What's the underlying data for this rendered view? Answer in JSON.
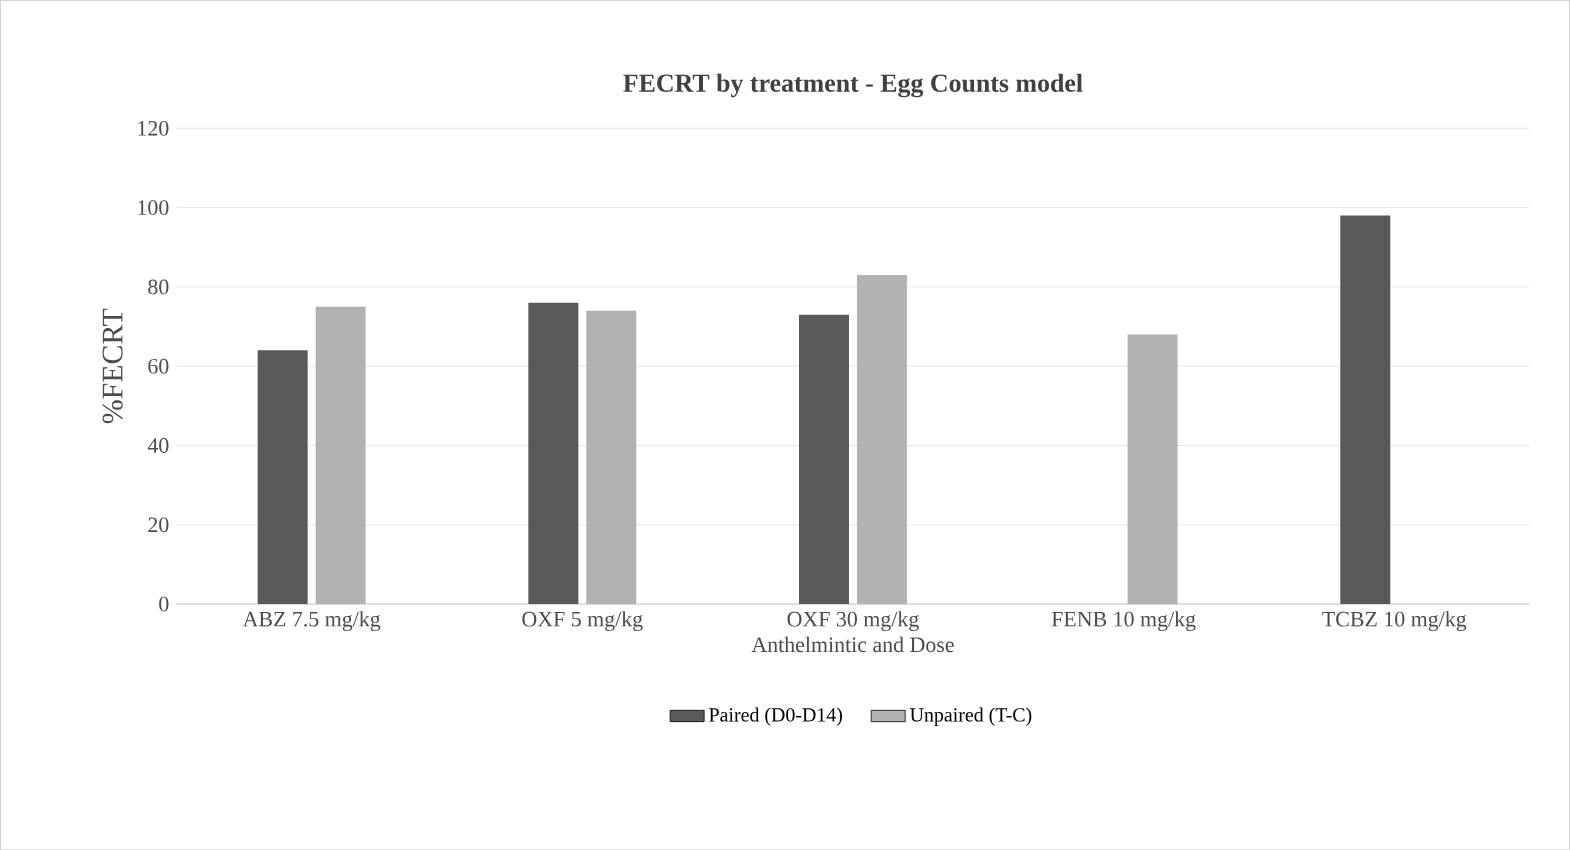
{
  "chart_data": {
    "type": "bar",
    "title": "FECRT by treatment - Egg Counts model",
    "xlabel": "Anthelmintic and Dose",
    "ylabel": "%FECRT",
    "categories": [
      "ABZ 7.5 mg/kg",
      "OXF 5 mg/kg",
      "OXF 30 mg/kg",
      "FENB 10 mg/kg",
      "TCBZ 10 mg/kg"
    ],
    "series": [
      {
        "name": "Paired (D0-D14)",
        "color": "#595959",
        "values": [
          64,
          76,
          73,
          null,
          98
        ]
      },
      {
        "name": "Unpaired (T-C)",
        "color": "#b2b2b2",
        "values": [
          75,
          74,
          83,
          68,
          null
        ]
      }
    ],
    "ylim": [
      0,
      120
    ],
    "yticks": [
      0,
      20,
      40,
      60,
      80,
      100,
      120
    ],
    "grid": "y",
    "legend": "bottom"
  }
}
